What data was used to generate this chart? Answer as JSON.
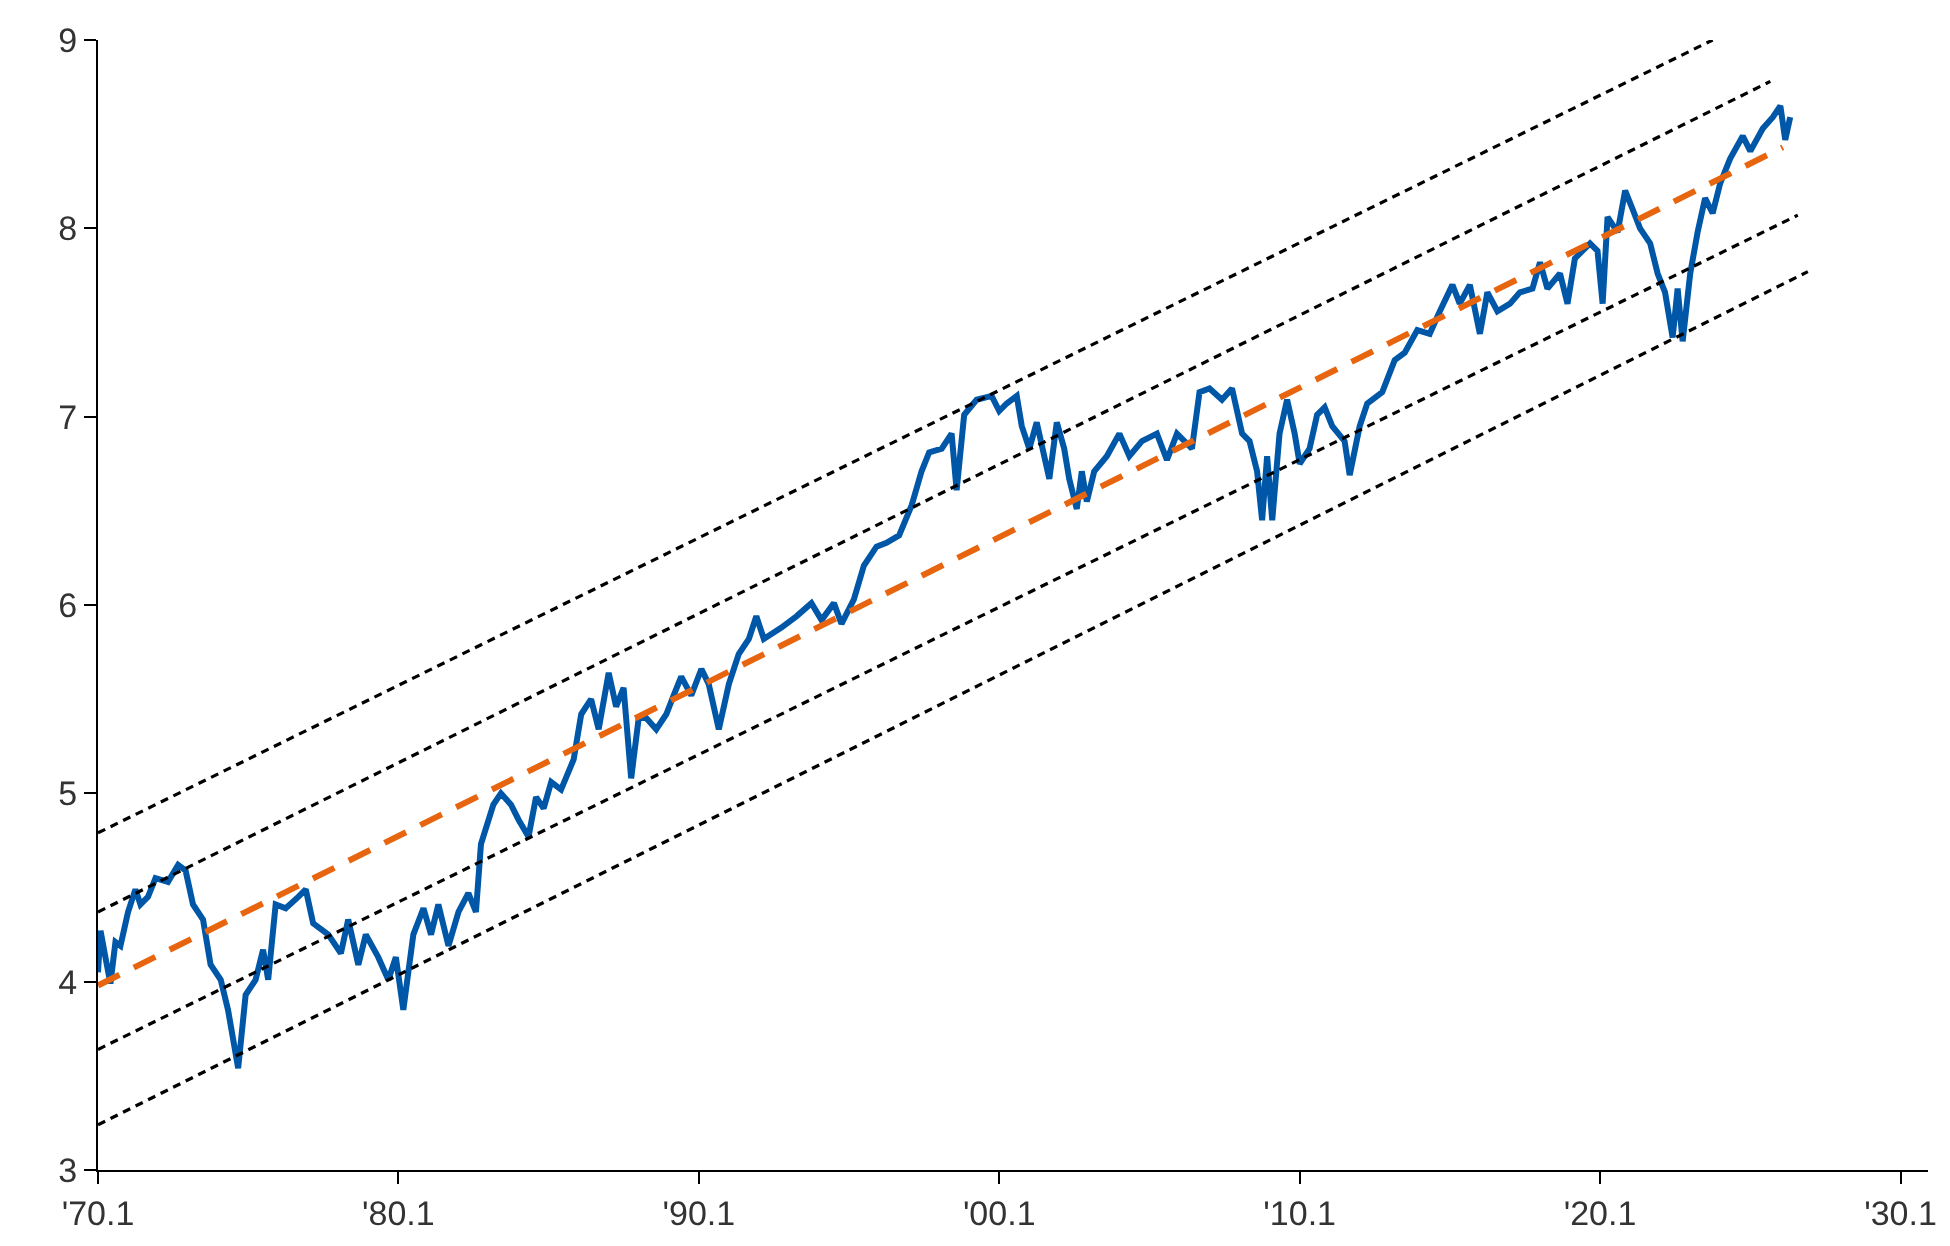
{
  "chart_data": {
    "type": "line",
    "xlim": [
      "1970-01",
      "2030-12"
    ],
    "ylim": [
      3,
      9
    ],
    "xticks": [
      {
        "value": "1970-01",
        "label": "'70.1"
      },
      {
        "value": "1980-01",
        "label": "'80.1"
      },
      {
        "value": "1990-01",
        "label": "'90.1"
      },
      {
        "value": "2000-01",
        "label": "'00.1"
      },
      {
        "value": "2010-01",
        "label": "'10.1"
      },
      {
        "value": "2020-01",
        "label": "'20.1"
      },
      {
        "value": "2030-01",
        "label": "'30.1"
      }
    ],
    "yticks": [
      3,
      4,
      5,
      6,
      7,
      8,
      9
    ],
    "marker": "none",
    "series": [
      {
        "color": "#0057a8",
        "line_style": "solid",
        "x": [
          "1970-01",
          "1970-02",
          "1970-04",
          "1970-06",
          "1970-08",
          "1970-10",
          "1971-01",
          "1971-04",
          "1971-06",
          "1971-09",
          "1971-12",
          "1972-05",
          "1972-09",
          "1972-12",
          "1973-03",
          "1973-07",
          "1973-10",
          "1974-02",
          "1974-05",
          "1974-09",
          "1974-12",
          "1975-04",
          "1975-07",
          "1975-09",
          "1975-12",
          "1976-04",
          "1976-09",
          "1976-12",
          "1977-03",
          "1977-09",
          "1978-02",
          "1978-05",
          "1978-09",
          "1978-12",
          "1979-05",
          "1979-09",
          "1979-12",
          "1980-03",
          "1980-07",
          "1980-11",
          "1981-02",
          "1981-05",
          "1981-09",
          "1982-01",
          "1982-05",
          "1982-08",
          "1982-10",
          "1983-03",
          "1983-06",
          "1983-10",
          "1984-01",
          "1984-05",
          "1984-08",
          "1984-11",
          "1985-02",
          "1985-06",
          "1985-11",
          "1986-02",
          "1986-06",
          "1986-09",
          "1987-01",
          "1987-04",
          "1987-07",
          "1987-10",
          "1988-01",
          "1988-04",
          "1988-08",
          "1988-12",
          "1989-03",
          "1989-06",
          "1989-10",
          "1990-02",
          "1990-05",
          "1990-09",
          "1991-01",
          "1991-05",
          "1991-09",
          "1991-12",
          "1992-03",
          "1992-10",
          "1993-04",
          "1993-10",
          "1994-02",
          "1994-07",
          "1994-10",
          "1995-03",
          "1995-07",
          "1995-12",
          "1996-04",
          "1996-09",
          "1997-02",
          "1997-06",
          "1997-09",
          "1998-02",
          "1998-06",
          "1998-08",
          "1998-11",
          "1999-04",
          "1999-10",
          "2000-01",
          "2000-04",
          "2000-08",
          "2000-10",
          "2001-01",
          "2001-04",
          "2001-07",
          "2001-09",
          "2001-12",
          "2002-03",
          "2002-05",
          "2002-08",
          "2002-10",
          "2002-12",
          "2003-03",
          "2003-08",
          "2004-01",
          "2004-05",
          "2004-10",
          "2005-04",
          "2005-08",
          "2005-12",
          "2006-06",
          "2006-09",
          "2007-01",
          "2007-06",
          "2007-10",
          "2008-02",
          "2008-05",
          "2008-08",
          "2008-10",
          "2008-12",
          "2009-02",
          "2009-05",
          "2009-08",
          "2009-11",
          "2010-01",
          "2010-05",
          "2010-08",
          "2010-11",
          "2011-02",
          "2011-07",
          "2011-09",
          "2012-01",
          "2012-04",
          "2012-10",
          "2013-03",
          "2013-07",
          "2013-12",
          "2014-05",
          "2014-09",
          "2015-02",
          "2015-05",
          "2015-09",
          "2016-01",
          "2016-04",
          "2016-08",
          "2017-01",
          "2017-05",
          "2017-10",
          "2018-01",
          "2018-04",
          "2018-09",
          "2018-12",
          "2019-03",
          "2019-06",
          "2019-09",
          "2019-12",
          "2020-02",
          "2020-04",
          "2020-08",
          "2020-11",
          "2021-02",
          "2021-05",
          "2021-09",
          "2021-12",
          "2022-03",
          "2022-06",
          "2022-08",
          "2022-10",
          "2023-01",
          "2023-04",
          "2023-07",
          "2023-10",
          "2024-01",
          "2024-05",
          "2024-10",
          "2025-01",
          "2025-06",
          "2025-10",
          "2026-01",
          "2026-03",
          "2026-05"
        ],
        "values": [
          4.05,
          4.27,
          4.13,
          3.99,
          4.21,
          4.19,
          4.37,
          4.49,
          4.41,
          4.45,
          4.55,
          4.53,
          4.62,
          4.59,
          4.41,
          4.33,
          4.09,
          4.01,
          3.85,
          3.54,
          3.93,
          4.01,
          4.17,
          4.01,
          4.41,
          4.39,
          4.45,
          4.49,
          4.31,
          4.25,
          4.15,
          4.33,
          4.09,
          4.25,
          4.13,
          4.01,
          4.13,
          3.85,
          4.25,
          4.39,
          4.25,
          4.41,
          4.19,
          4.37,
          4.47,
          4.37,
          4.73,
          4.94,
          5.0,
          4.94,
          4.86,
          4.77,
          4.98,
          4.92,
          5.06,
          5.02,
          5.18,
          5.42,
          5.5,
          5.34,
          5.64,
          5.46,
          5.56,
          5.08,
          5.4,
          5.4,
          5.34,
          5.42,
          5.52,
          5.62,
          5.52,
          5.66,
          5.58,
          5.34,
          5.58,
          5.74,
          5.82,
          5.94,
          5.82,
          5.88,
          5.94,
          6.01,
          5.92,
          6.01,
          5.9,
          6.03,
          6.21,
          6.31,
          6.33,
          6.37,
          6.53,
          6.71,
          6.81,
          6.83,
          6.91,
          6.61,
          7.01,
          7.09,
          7.11,
          7.03,
          7.07,
          7.11,
          6.95,
          6.83,
          6.97,
          6.79,
          6.67,
          6.97,
          6.83,
          6.67,
          6.51,
          6.71,
          6.55,
          6.71,
          6.79,
          6.91,
          6.79,
          6.87,
          6.91,
          6.77,
          6.91,
          6.83,
          7.13,
          7.15,
          7.09,
          7.15,
          6.91,
          6.87,
          6.71,
          6.45,
          6.79,
          6.45,
          6.91,
          7.09,
          6.91,
          6.75,
          6.83,
          7.01,
          7.05,
          6.95,
          6.87,
          6.69,
          6.95,
          7.07,
          7.13,
          7.3,
          7.34,
          7.46,
          7.44,
          7.56,
          7.7,
          7.6,
          7.7,
          7.44,
          7.66,
          7.56,
          7.6,
          7.66,
          7.68,
          7.82,
          7.68,
          7.76,
          7.6,
          7.84,
          7.88,
          7.92,
          7.88,
          7.6,
          8.06,
          7.98,
          8.2,
          8.1,
          8.0,
          7.92,
          7.76,
          7.66,
          7.42,
          7.68,
          7.4,
          7.76,
          7.98,
          8.16,
          8.08,
          8.24,
          8.37,
          8.49,
          8.41,
          8.53,
          8.59,
          8.65,
          8.47,
          8.59
        ]
      },
      {
        "color": "#000000",
        "line_style": "dashed",
        "x": [
          "1970-01",
          "2023-10"
        ],
        "values": [
          4.79,
          9.0
        ]
      },
      {
        "color": "#000000",
        "line_style": "dashed",
        "x": [
          "1970-01",
          "2025-09"
        ],
        "values": [
          4.37,
          8.78
        ]
      },
      {
        "color": "#e8650f",
        "line_style": "dashed",
        "x": [
          "1970-01",
          "2026-02"
        ],
        "values": [
          3.98,
          8.43
        ]
      },
      {
        "color": "#000000",
        "line_style": "dashed",
        "x": [
          "1970-01",
          "2026-08"
        ],
        "values": [
          3.64,
          8.07
        ]
      },
      {
        "color": "#000000",
        "line_style": "dashed",
        "x": [
          "1970-01",
          "2026-12"
        ],
        "values": [
          3.24,
          7.77
        ]
      }
    ]
  }
}
